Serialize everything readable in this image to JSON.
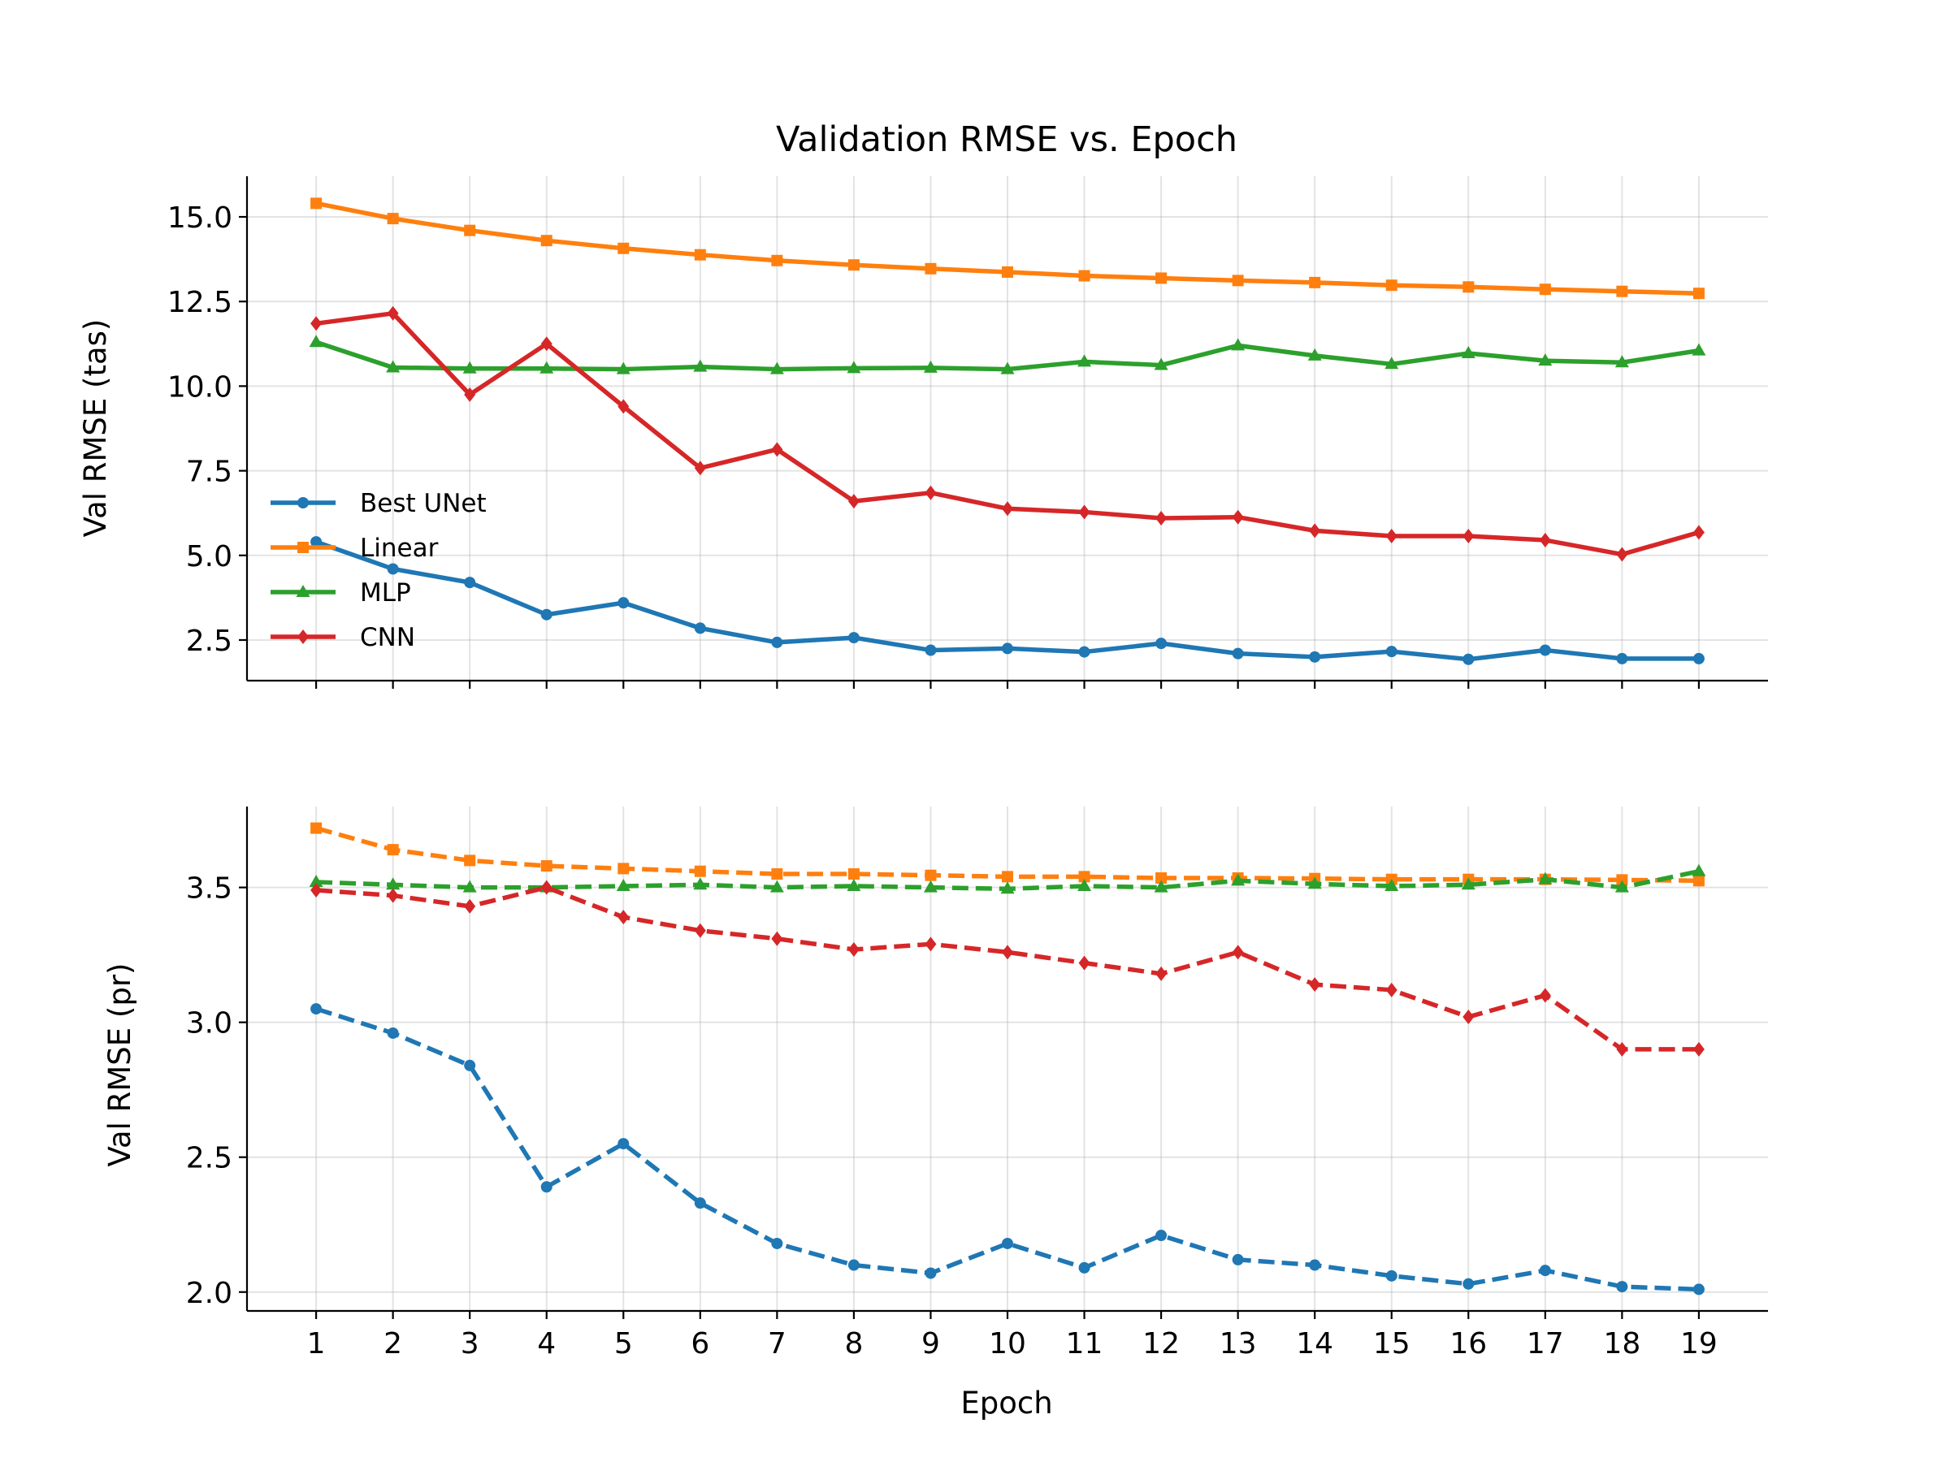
{
  "chart_data": [
    {
      "type": "line",
      "title": "Validation RMSE vs. Epoch",
      "ylabel": "Val RMSE (tas)",
      "xlabel": "",
      "grid": true,
      "legend": "center-left",
      "x": [
        1,
        2,
        3,
        4,
        5,
        6,
        7,
        8,
        9,
        10,
        11,
        12,
        13,
        14,
        15,
        16,
        17,
        18,
        19
      ],
      "ylim": [
        1.3,
        16.2
      ],
      "yticks": [
        2.5,
        5.0,
        7.5,
        10.0,
        12.5,
        15.0
      ],
      "ytick_labels": [
        "2.5",
        "5.0",
        "7.5",
        "10.0",
        "12.5",
        "15.0"
      ],
      "series": [
        {
          "name": "Best UNet",
          "color": "#1f77b4",
          "marker": "circle",
          "linestyle": "solid",
          "values": [
            5.4,
            4.6,
            4.2,
            3.25,
            3.6,
            2.85,
            2.43,
            2.57,
            2.2,
            2.25,
            2.15,
            2.4,
            2.1,
            2.0,
            2.16,
            1.93,
            2.2,
            1.95,
            1.95
          ]
        },
        {
          "name": "Linear",
          "color": "#ff7f0e",
          "marker": "square",
          "linestyle": "solid",
          "values": [
            15.4,
            14.95,
            14.6,
            14.3,
            14.07,
            13.88,
            13.71,
            13.58,
            13.47,
            13.37,
            13.26,
            13.19,
            13.12,
            13.06,
            12.98,
            12.93,
            12.86,
            12.8,
            12.74
          ]
        },
        {
          "name": "MLP",
          "color": "#2ca02c",
          "marker": "triangle",
          "linestyle": "solid",
          "values": [
            11.3,
            10.55,
            10.52,
            10.52,
            10.5,
            10.57,
            10.5,
            10.53,
            10.54,
            10.5,
            10.72,
            10.62,
            11.2,
            10.9,
            10.65,
            10.97,
            10.75,
            10.7,
            11.05
          ]
        },
        {
          "name": "CNN",
          "color": "#d62728",
          "marker": "diamond",
          "linestyle": "solid",
          "values": [
            11.85,
            12.15,
            9.75,
            11.25,
            9.4,
            7.58,
            8.13,
            6.6,
            6.85,
            6.38,
            6.28,
            6.1,
            6.13,
            5.73,
            5.57,
            5.57,
            5.45,
            5.03,
            5.68
          ]
        }
      ]
    },
    {
      "type": "line",
      "title": "",
      "ylabel": "Val RMSE (pr)",
      "xlabel": "Epoch",
      "grid": true,
      "legend": "none",
      "x": [
        1,
        2,
        3,
        4,
        5,
        6,
        7,
        8,
        9,
        10,
        11,
        12,
        13,
        14,
        15,
        16,
        17,
        18,
        19
      ],
      "xticks": [
        "1",
        "2",
        "3",
        "4",
        "5",
        "6",
        "7",
        "8",
        "9",
        "10",
        "11",
        "12",
        "13",
        "14",
        "15",
        "16",
        "17",
        "18",
        "19"
      ],
      "ylim": [
        1.93,
        3.8
      ],
      "yticks": [
        2.0,
        2.5,
        3.0,
        3.5
      ],
      "ytick_labels": [
        "2.0",
        "2.5",
        "3.0",
        "3.5"
      ],
      "series": [
        {
          "name": "Best UNet",
          "color": "#1f77b4",
          "marker": "circle",
          "linestyle": "dashed",
          "values": [
            3.05,
            2.96,
            2.84,
            2.39,
            2.55,
            2.33,
            2.18,
            2.1,
            2.07,
            2.18,
            2.09,
            2.21,
            2.12,
            2.1,
            2.06,
            2.03,
            2.08,
            2.02,
            2.01
          ]
        },
        {
          "name": "Linear",
          "color": "#ff7f0e",
          "marker": "square",
          "linestyle": "dashed",
          "values": [
            3.72,
            3.64,
            3.6,
            3.58,
            3.57,
            3.56,
            3.55,
            3.55,
            3.545,
            3.54,
            3.54,
            3.535,
            3.535,
            3.533,
            3.53,
            3.53,
            3.53,
            3.528,
            3.525
          ]
        },
        {
          "name": "MLP",
          "color": "#2ca02c",
          "marker": "triangle",
          "linestyle": "dashed",
          "values": [
            3.52,
            3.51,
            3.5,
            3.5,
            3.505,
            3.51,
            3.5,
            3.505,
            3.5,
            3.495,
            3.505,
            3.5,
            3.525,
            3.513,
            3.505,
            3.51,
            3.53,
            3.5,
            3.56
          ]
        },
        {
          "name": "CNN",
          "color": "#d62728",
          "marker": "diamond",
          "linestyle": "dashed",
          "values": [
            3.49,
            3.47,
            3.43,
            3.5,
            3.39,
            3.34,
            3.31,
            3.27,
            3.29,
            3.26,
            3.22,
            3.18,
            3.26,
            3.14,
            3.12,
            3.02,
            3.1,
            2.9,
            2.9
          ]
        }
      ]
    }
  ]
}
